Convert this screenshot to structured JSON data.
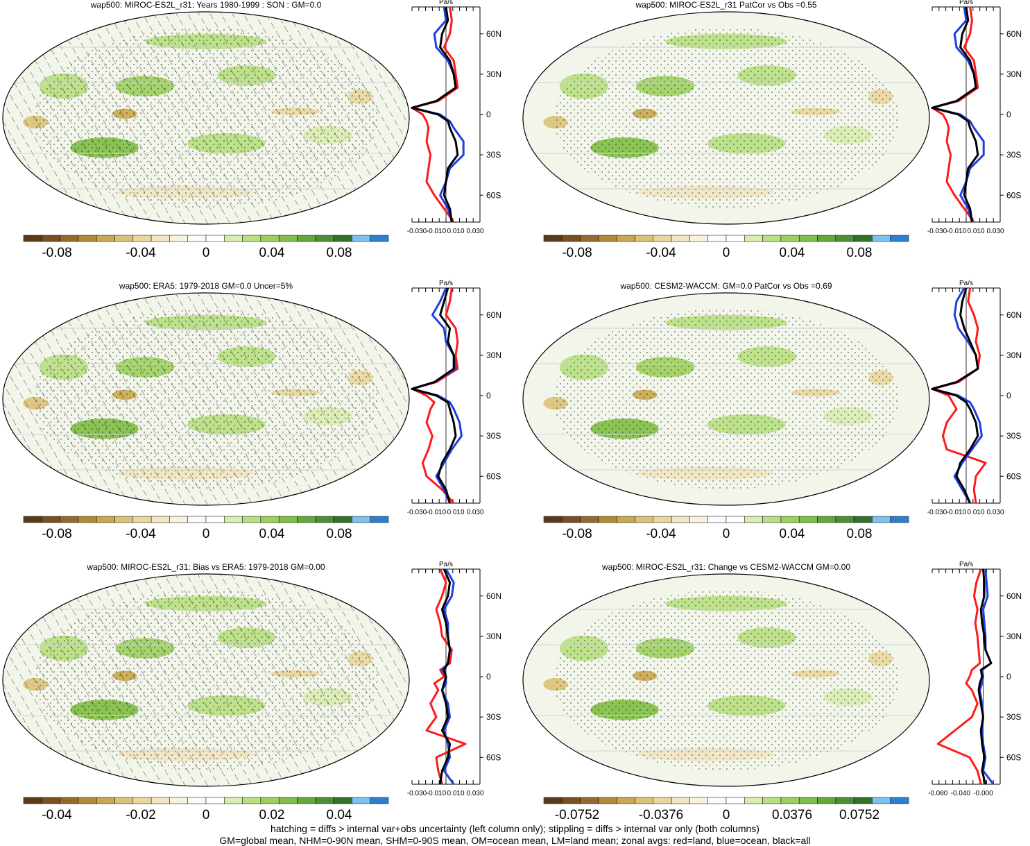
{
  "colors": {
    "colorbar": [
      "#5a3a1a",
      "#7a4f22",
      "#946a2c",
      "#b08a34",
      "#c9a84e",
      "#dbc278",
      "#e8d79e",
      "#f1e6c1",
      "#f8f1dd",
      "#fbfbff",
      "#ffffff",
      "#d9ecb1",
      "#b8df82",
      "#9ccf5e",
      "#7fbf45",
      "#62a83a",
      "#4a8f35",
      "#33722d",
      "#7ec0ee",
      "#2a7fd0"
    ],
    "land": "#c23e3e",
    "ocean": "#1f3de0",
    "all": "#000000",
    "red_line": "#ff1a1a"
  },
  "panels": [
    {
      "title": "wap500: MIROC-ES2L_r31: Years 1980-1999 : SON : GM=0.0",
      "colorbar_labels": [
        "-0.08",
        "-0.04",
        "0",
        "0.04",
        "0.08"
      ],
      "zonal_unit": "Pa/s",
      "zonal_ticks": [
        "-0.030",
        "-0.010",
        "0.010",
        "0.030"
      ],
      "lat_labels": [
        "60N",
        "30N",
        "0",
        "30S",
        "60S"
      ],
      "hatching": true
    },
    {
      "title": "wap500: MIROC-ES2L_r31 PatCor vs Obs =0.55",
      "colorbar_labels": [
        "-0.08",
        "-0.04",
        "0",
        "0.04",
        "0.08"
      ],
      "zonal_unit": "Pa/s",
      "zonal_ticks": [
        "-0.030",
        "-0.010",
        "0.010",
        "0.030"
      ],
      "lat_labels": [
        "60N",
        "30N",
        "0",
        "30S",
        "60S"
      ],
      "hatching": false
    },
    {
      "title": "wap500: ERA5: 1979-2018 GM=0.0 Uncer=5%",
      "colorbar_labels": [
        "-0.08",
        "-0.04",
        "0",
        "0.04",
        "0.08"
      ],
      "zonal_unit": "Pa/s",
      "zonal_ticks": [
        "-0.030",
        "-0.010",
        "0.010",
        "0.030"
      ],
      "lat_labels": [
        "60N",
        "30N",
        "0",
        "30S",
        "60S"
      ],
      "hatching": true
    },
    {
      "title": "wap500: CESM2-WACCM: GM=0.0 PatCor vs Obs =0.69",
      "colorbar_labels": [
        "-0.08",
        "-0.04",
        "0",
        "0.04",
        "0.08"
      ],
      "zonal_unit": "Pa/s",
      "zonal_ticks": [
        "-0.030",
        "-0.010",
        "0.010",
        "0.030"
      ],
      "lat_labels": [
        "60N",
        "30N",
        "0",
        "30S",
        "60S"
      ],
      "hatching": false
    },
    {
      "title": "wap500: MIROC-ES2L_r31: Bias vs ERA5: 1979-2018  GM=0.00",
      "colorbar_labels": [
        "-0.04",
        "-0.02",
        "0",
        "0.02",
        "0.04"
      ],
      "zonal_unit": "Pa/s",
      "zonal_ticks": [
        "-0.030",
        "-0.010",
        "0.010",
        "0.030"
      ],
      "lat_labels": [
        "60N",
        "30N",
        "0",
        "30S",
        "60S"
      ],
      "hatching": true
    },
    {
      "title": "wap500: MIROC-ES2L_r31: Change vs CESM2-WACCM GM=0.00",
      "colorbar_labels": [
        "-0.0752",
        "-0.0376",
        "0",
        "0.0376",
        "0.0752"
      ],
      "zonal_unit": "Pa/s",
      "zonal_ticks": [
        "-0.080",
        "-0.040",
        "-0.000"
      ],
      "lat_labels": [
        "60N",
        "30N",
        "0",
        "30S",
        "60S"
      ],
      "hatching": false
    }
  ],
  "caption": {
    "line1": "hatching = diffs > internal var+obs uncertainty (left column only); stippling = diffs > internal var only (both columns)",
    "line2": "GM=global mean, NHM=0-90N mean, SHM=0-90S mean, OM=ocean mean, LM=land mean; zonal avgs: red=land, blue=ocean, black=all"
  },
  "chart_data": [
    {
      "type": "heatmap",
      "title": "wap500: MIROC-ES2L_r31: Years 1980-1999 : SON : GM=0.0",
      "variable": "wap500",
      "unit": "Pa/s",
      "colorbar_range": [
        -0.1,
        0.1
      ],
      "zonal_mean": {
        "lat": [
          80,
          70,
          60,
          50,
          40,
          30,
          20,
          10,
          5,
          0,
          -5,
          -10,
          -20,
          -30,
          -40,
          -50,
          -60,
          -70,
          -80
        ],
        "all": [
          0.0,
          0.002,
          -0.004,
          -0.006,
          0.004,
          0.008,
          0.01,
          -0.01,
          -0.04,
          -0.008,
          0.002,
          0.004,
          0.01,
          0.012,
          0.002,
          0.0,
          -0.002,
          0.004,
          0.006
        ],
        "land": [
          0.004,
          0.006,
          0.004,
          -0.002,
          0.008,
          0.01,
          0.012,
          -0.008,
          -0.04,
          -0.024,
          -0.02,
          -0.018,
          -0.02,
          -0.016,
          -0.018,
          -0.02,
          -0.012,
          -0.002,
          0.008
        ],
        "ocean": [
          -0.002,
          0.0,
          -0.012,
          -0.01,
          0.002,
          0.008,
          0.01,
          -0.01,
          -0.04,
          -0.006,
          0.004,
          0.008,
          0.018,
          0.018,
          0.004,
          0.0,
          -0.006,
          0.002,
          0.006
        ]
      }
    },
    {
      "type": "heatmap",
      "title": "wap500: MIROC-ES2L_r31 PatCor vs Obs =0.55",
      "variable": "wap500",
      "unit": "Pa/s",
      "colorbar_range": [
        -0.1,
        0.1
      ],
      "zonal_mean": {
        "lat": [
          80,
          70,
          60,
          50,
          40,
          30,
          20,
          10,
          5,
          0,
          -5,
          -10,
          -20,
          -30,
          -40,
          -50,
          -60,
          -70,
          -80
        ],
        "all": [
          0.0,
          0.002,
          -0.004,
          -0.006,
          0.004,
          0.008,
          0.01,
          -0.01,
          -0.04,
          -0.008,
          0.002,
          0.004,
          0.01,
          0.012,
          0.002,
          0.0,
          -0.002,
          0.004,
          0.006
        ],
        "land": [
          0.004,
          0.006,
          0.004,
          -0.002,
          0.008,
          0.01,
          0.012,
          -0.008,
          -0.04,
          -0.024,
          -0.02,
          -0.018,
          -0.02,
          -0.016,
          -0.018,
          -0.02,
          -0.012,
          -0.002,
          0.008
        ],
        "ocean": [
          -0.002,
          0.0,
          -0.012,
          -0.01,
          0.002,
          0.008,
          0.01,
          -0.01,
          -0.04,
          -0.006,
          0.004,
          0.008,
          0.018,
          0.018,
          0.004,
          0.0,
          -0.006,
          0.002,
          0.006
        ]
      }
    },
    {
      "type": "heatmap",
      "title": "wap500: ERA5: 1979-2018 GM=0.0 Uncer=5%",
      "variable": "wap500",
      "unit": "Pa/s",
      "colorbar_range": [
        -0.1,
        0.1
      ],
      "zonal_mean": {
        "lat": [
          80,
          70,
          60,
          50,
          40,
          30,
          20,
          10,
          5,
          0,
          -5,
          -10,
          -20,
          -30,
          -40,
          -50,
          -60,
          -70,
          -80
        ],
        "all": [
          0.002,
          -0.002,
          -0.006,
          0.004,
          0.002,
          0.008,
          0.008,
          -0.012,
          -0.04,
          -0.01,
          0.002,
          0.004,
          0.008,
          0.01,
          0.004,
          -0.004,
          -0.008,
          0.0,
          0.004
        ],
        "land": [
          0.006,
          0.004,
          0.0,
          0.01,
          0.012,
          0.01,
          0.012,
          -0.01,
          -0.04,
          -0.02,
          -0.012,
          -0.016,
          -0.02,
          -0.014,
          -0.018,
          -0.024,
          -0.02,
          -0.004,
          0.008
        ],
        "ocean": [
          0.0,
          -0.006,
          -0.014,
          -0.002,
          0.0,
          0.008,
          0.01,
          -0.012,
          -0.04,
          -0.008,
          0.004,
          0.008,
          0.014,
          0.016,
          0.006,
          -0.002,
          -0.01,
          -0.002,
          0.004
        ]
      }
    },
    {
      "type": "heatmap",
      "title": "wap500: CESM2-WACCM: GM=0.0 PatCor vs Obs =0.69",
      "variable": "wap500",
      "unit": "Pa/s",
      "colorbar_range": [
        -0.1,
        0.1
      ],
      "zonal_mean": {
        "lat": [
          80,
          70,
          60,
          50,
          40,
          30,
          20,
          10,
          5,
          0,
          -5,
          -10,
          -20,
          -30,
          -40,
          -50,
          -60,
          -70,
          -80
        ],
        "all": [
          0.0,
          -0.004,
          -0.006,
          -0.002,
          0.004,
          0.01,
          0.012,
          -0.01,
          -0.04,
          -0.01,
          0.0,
          0.004,
          0.01,
          0.012,
          0.004,
          -0.006,
          -0.01,
          -0.002,
          0.004
        ],
        "land": [
          0.004,
          0.002,
          0.008,
          0.012,
          0.01,
          0.014,
          0.012,
          -0.008,
          -0.04,
          -0.018,
          -0.014,
          -0.01,
          -0.02,
          -0.024,
          -0.02,
          0.02,
          0.01,
          0.008,
          0.01
        ],
        "ocean": [
          -0.002,
          -0.01,
          -0.012,
          -0.008,
          0.002,
          0.01,
          0.012,
          -0.01,
          -0.04,
          -0.008,
          0.004,
          0.008,
          0.014,
          0.016,
          0.006,
          -0.004,
          -0.012,
          -0.004,
          0.004
        ]
      }
    },
    {
      "type": "heatmap",
      "title": "wap500: MIROC-ES2L_r31: Bias vs ERA5: 1979-2018  GM=0.00",
      "variable": "wap500",
      "unit": "Pa/s",
      "colorbar_range": [
        -0.05,
        0.05
      ],
      "zonal_mean": {
        "lat": [
          80,
          70,
          60,
          50,
          40,
          30,
          20,
          10,
          5,
          0,
          -5,
          -10,
          -20,
          -30,
          -40,
          -50,
          -60,
          -70,
          -80
        ],
        "all": [
          -0.002,
          0.004,
          0.002,
          -0.004,
          0.0,
          0.002,
          0.004,
          0.002,
          -0.002,
          0.0,
          -0.002,
          -0.004,
          0.0,
          0.002,
          -0.004,
          0.004,
          0.002,
          -0.004,
          -0.006
        ],
        "land": [
          -0.006,
          0.0,
          -0.004,
          -0.01,
          -0.006,
          -0.004,
          0.006,
          0.004,
          -0.006,
          -0.002,
          -0.012,
          -0.008,
          -0.016,
          -0.01,
          -0.02,
          0.02,
          -0.01,
          -0.008,
          -0.004
        ],
        "ocean": [
          0.0,
          0.008,
          0.006,
          -0.002,
          0.002,
          0.002,
          0.004,
          0.002,
          -0.004,
          0.0,
          0.0,
          -0.004,
          0.002,
          0.004,
          -0.002,
          0.002,
          0.004,
          -0.002,
          0.008
        ]
      }
    },
    {
      "type": "heatmap",
      "title": "wap500: MIROC-ES2L_r31: Change vs CESM2-WACCM GM=0.00",
      "variable": "wap500",
      "unit": "Pa/s",
      "colorbar_range": [
        -0.094,
        0.094
      ],
      "zonal_mean": {
        "lat": [
          80,
          70,
          60,
          50,
          40,
          30,
          20,
          10,
          5,
          0,
          -5,
          -10,
          -20,
          -30,
          -40,
          -50,
          -60,
          -70,
          -80
        ],
        "all": [
          0.0,
          0.002,
          0.002,
          -0.004,
          -0.002,
          0.002,
          0.004,
          0.014,
          -0.004,
          -0.002,
          -0.006,
          -0.008,
          -0.004,
          0.0,
          -0.004,
          -0.002,
          0.002,
          -0.002,
          0.004
        ],
        "land": [
          -0.004,
          -0.012,
          -0.016,
          -0.01,
          -0.014,
          -0.01,
          -0.008,
          -0.006,
          -0.02,
          -0.024,
          -0.03,
          -0.02,
          -0.01,
          -0.02,
          -0.05,
          -0.08,
          -0.024,
          -0.01,
          -0.004
        ],
        "ocean": [
          0.004,
          0.006,
          0.008,
          0.0,
          0.002,
          0.004,
          0.004,
          0.014,
          -0.002,
          0.0,
          -0.002,
          -0.006,
          -0.002,
          0.0,
          -0.002,
          0.0,
          0.004,
          0.0,
          0.018
        ]
      }
    }
  ]
}
